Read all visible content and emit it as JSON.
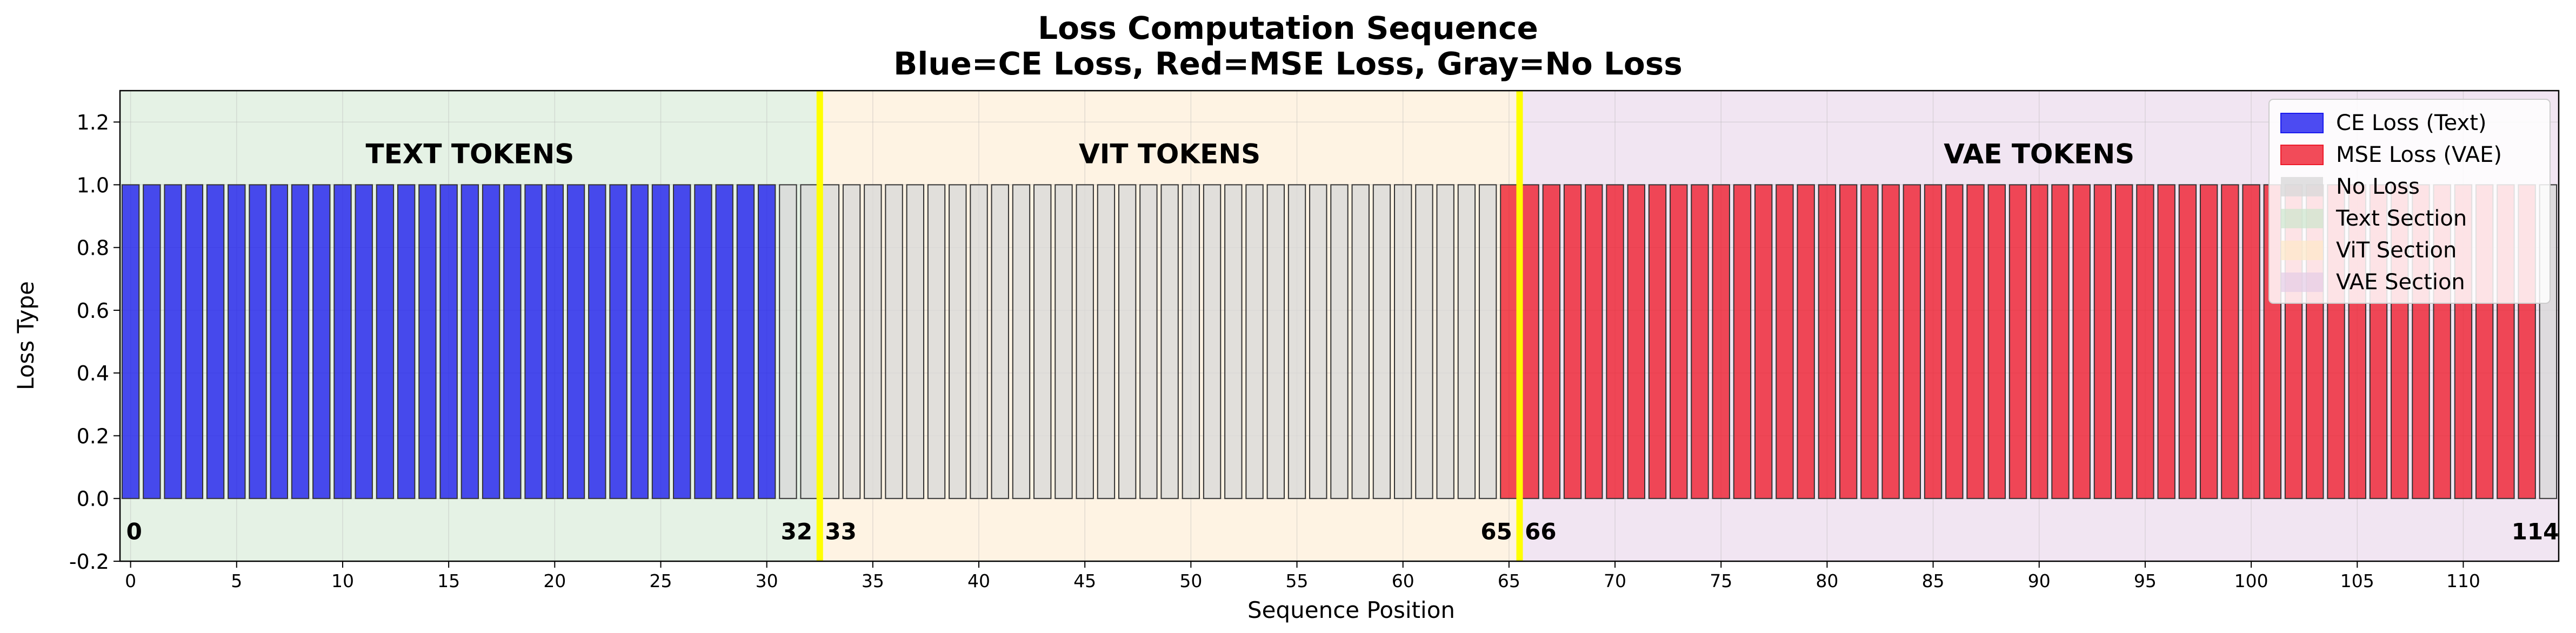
{
  "chart_data": {
    "type": "bar",
    "title": "Loss Computation Sequence",
    "subtitle": "Blue=CE Loss, Red=MSE Loss, Gray=No Loss",
    "xlabel": "Sequence Position",
    "ylabel": "Loss Type",
    "xlim": [
      -0.5,
      114.5
    ],
    "ylim": [
      -0.2,
      1.3
    ],
    "xticks": [
      0,
      5,
      10,
      15,
      20,
      25,
      30,
      35,
      40,
      45,
      50,
      55,
      60,
      65,
      70,
      75,
      80,
      85,
      90,
      95,
      100,
      105,
      110
    ],
    "yticks": [
      "-0.2",
      "0.0",
      "0.2",
      "0.4",
      "0.6",
      "0.8",
      "1.0",
      "1.2"
    ],
    "grid": true,
    "legend_position": "top-right",
    "sections": [
      {
        "name": "Text Section",
        "label": "TEXT TOKENS",
        "start": 0,
        "end": 32,
        "color": "#cce5cc"
      },
      {
        "name": "ViT Section",
        "label": "VIT TOKENS",
        "start": 33,
        "end": 65,
        "color": "#fde8c8"
      },
      {
        "name": "VAE Section",
        "label": "VAE TOKENS",
        "start": 66,
        "end": 114,
        "color": "#e4cce6"
      }
    ],
    "boundaries": [
      32.5,
      65.5
    ],
    "boundary_color": "#ffff00",
    "position_labels": [
      "0",
      "32",
      "33",
      "65",
      "66",
      "114"
    ],
    "series": [
      {
        "name": "CE Loss (Text)",
        "color": "#1a1aee",
        "positions": {
          "from": 0,
          "to": 30
        },
        "value": 1.0
      },
      {
        "name": "MSE Loss (VAE)",
        "color": "#ee1a2a",
        "positions": {
          "from": 65,
          "to": 113
        },
        "value": 1.0
      },
      {
        "name": "No Loss",
        "color": "#d8d8d8",
        "positions": [
          {
            "from": 31,
            "to": 64
          },
          {
            "from": 114,
            "to": 114
          }
        ],
        "value": 1.0
      }
    ],
    "legend": [
      "CE Loss (Text)",
      "MSE Loss (VAE)",
      "No Loss",
      "Text Section",
      "ViT Section",
      "VAE Section"
    ]
  }
}
